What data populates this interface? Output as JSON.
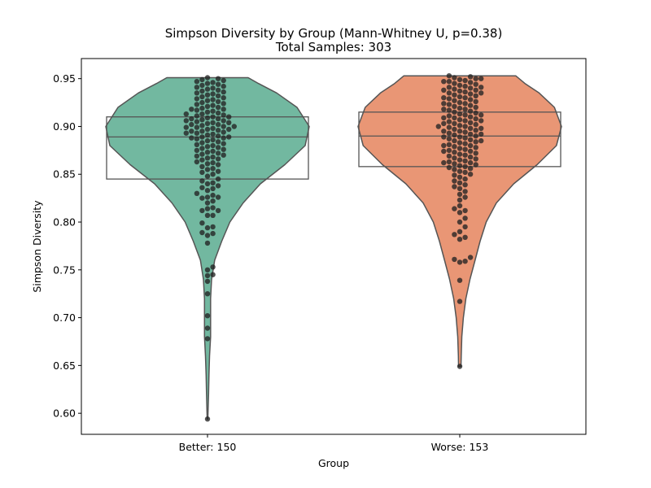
{
  "chart_data": {
    "type": "violin",
    "title": "Simpson Diversity by Group (Mann-Whitney U, p=0.38)",
    "subtitle": "Total Samples: 303",
    "xlabel": "Group",
    "ylabel": "Simpson Diversity",
    "ylim": [
      0.578,
      0.971
    ],
    "yticks": [
      "0.60",
      "0.65",
      "0.70",
      "0.75",
      "0.80",
      "0.85",
      "0.90",
      "0.95"
    ],
    "categories": [
      "Better: 150",
      "Worse: 153"
    ],
    "colors": {
      "Better: 150": "#72b8a0",
      "Worse: 153": "#e99675"
    },
    "grid": false,
    "series": [
      {
        "category": "Better: 150",
        "min": 0.594,
        "max": 0.951,
        "box": {
          "q1": 0.845,
          "median": 0.889,
          "q3": 0.91
        },
        "density": [
          [
            0.594,
            0.003
          ],
          [
            0.6,
            0.005
          ],
          [
            0.62,
            0.01
          ],
          [
            0.64,
            0.014
          ],
          [
            0.66,
            0.02
          ],
          [
            0.68,
            0.03
          ],
          [
            0.7,
            0.03
          ],
          [
            0.72,
            0.03
          ],
          [
            0.74,
            0.04
          ],
          [
            0.76,
            0.07
          ],
          [
            0.78,
            0.14
          ],
          [
            0.8,
            0.22
          ],
          [
            0.82,
            0.35
          ],
          [
            0.84,
            0.52
          ],
          [
            0.86,
            0.76
          ],
          [
            0.88,
            0.96
          ],
          [
            0.9,
            1.0
          ],
          [
            0.92,
            0.88
          ],
          [
            0.935,
            0.68
          ],
          [
            0.945,
            0.5
          ],
          [
            0.951,
            0.4
          ]
        ],
        "points": [
          0.594,
          0.678,
          0.689,
          0.702,
          0.725,
          0.738,
          0.744,
          0.745,
          0.75,
          0.753,
          0.778,
          0.786,
          0.788,
          0.789,
          0.794,
          0.795,
          0.799,
          0.807,
          0.807,
          0.812,
          0.812,
          0.814,
          0.815,
          0.82,
          0.822,
          0.825,
          0.826,
          0.826,
          0.828,
          0.83,
          0.833,
          0.835,
          0.836,
          0.838,
          0.84,
          0.841,
          0.843,
          0.845,
          0.848,
          0.85,
          0.852,
          0.853,
          0.855,
          0.856,
          0.858,
          0.86,
          0.861,
          0.862,
          0.863,
          0.865,
          0.866,
          0.867,
          0.868,
          0.869,
          0.87,
          0.871,
          0.872,
          0.873,
          0.874,
          0.875,
          0.876,
          0.877,
          0.878,
          0.879,
          0.88,
          0.881,
          0.882,
          0.883,
          0.884,
          0.885,
          0.886,
          0.887,
          0.888,
          0.888,
          0.889,
          0.889,
          0.89,
          0.891,
          0.892,
          0.893,
          0.893,
          0.894,
          0.895,
          0.895,
          0.896,
          0.897,
          0.897,
          0.898,
          0.899,
          0.899,
          0.9,
          0.9,
          0.901,
          0.902,
          0.902,
          0.903,
          0.904,
          0.904,
          0.905,
          0.906,
          0.906,
          0.907,
          0.908,
          0.908,
          0.909,
          0.91,
          0.91,
          0.911,
          0.912,
          0.913,
          0.913,
          0.914,
          0.915,
          0.916,
          0.917,
          0.918,
          0.918,
          0.919,
          0.92,
          0.921,
          0.922,
          0.923,
          0.924,
          0.925,
          0.926,
          0.927,
          0.928,
          0.929,
          0.93,
          0.931,
          0.932,
          0.933,
          0.934,
          0.935,
          0.936,
          0.937,
          0.938,
          0.939,
          0.94,
          0.941,
          0.942,
          0.943,
          0.944,
          0.945,
          0.946,
          0.947,
          0.948,
          0.949,
          0.95,
          0.951
        ]
      },
      {
        "category": "Worse: 153",
        "min": 0.649,
        "max": 0.953,
        "box": {
          "q1": 0.858,
          "median": 0.89,
          "q3": 0.915
        },
        "density": [
          [
            0.649,
            0.012
          ],
          [
            0.66,
            0.014
          ],
          [
            0.68,
            0.02
          ],
          [
            0.7,
            0.035
          ],
          [
            0.72,
            0.06
          ],
          [
            0.74,
            0.1
          ],
          [
            0.76,
            0.15
          ],
          [
            0.78,
            0.2
          ],
          [
            0.8,
            0.26
          ],
          [
            0.82,
            0.36
          ],
          [
            0.84,
            0.53
          ],
          [
            0.86,
            0.76
          ],
          [
            0.88,
            0.95
          ],
          [
            0.9,
            1.0
          ],
          [
            0.92,
            0.93
          ],
          [
            0.935,
            0.78
          ],
          [
            0.945,
            0.64
          ],
          [
            0.953,
            0.55
          ]
        ],
        "points": [
          0.649,
          0.717,
          0.739,
          0.758,
          0.759,
          0.761,
          0.763,
          0.782,
          0.784,
          0.787,
          0.79,
          0.795,
          0.8,
          0.804,
          0.81,
          0.812,
          0.814,
          0.817,
          0.823,
          0.826,
          0.829,
          0.832,
          0.835,
          0.837,
          0.839,
          0.841,
          0.843,
          0.845,
          0.847,
          0.849,
          0.85,
          0.852,
          0.853,
          0.855,
          0.856,
          0.857,
          0.858,
          0.859,
          0.86,
          0.861,
          0.862,
          0.862,
          0.863,
          0.864,
          0.865,
          0.866,
          0.867,
          0.868,
          0.869,
          0.87,
          0.871,
          0.872,
          0.873,
          0.874,
          0.874,
          0.875,
          0.876,
          0.877,
          0.878,
          0.879,
          0.88,
          0.88,
          0.881,
          0.882,
          0.883,
          0.884,
          0.885,
          0.885,
          0.886,
          0.887,
          0.888,
          0.889,
          0.889,
          0.89,
          0.891,
          0.892,
          0.892,
          0.893,
          0.894,
          0.895,
          0.895,
          0.896,
          0.897,
          0.898,
          0.898,
          0.899,
          0.9,
          0.9,
          0.901,
          0.902,
          0.903,
          0.903,
          0.904,
          0.905,
          0.906,
          0.906,
          0.907,
          0.908,
          0.909,
          0.909,
          0.91,
          0.911,
          0.912,
          0.912,
          0.913,
          0.914,
          0.915,
          0.916,
          0.917,
          0.918,
          0.918,
          0.919,
          0.92,
          0.921,
          0.922,
          0.923,
          0.924,
          0.924,
          0.925,
          0.926,
          0.927,
          0.928,
          0.929,
          0.93,
          0.93,
          0.931,
          0.932,
          0.933,
          0.934,
          0.935,
          0.935,
          0.936,
          0.937,
          0.938,
          0.938,
          0.939,
          0.94,
          0.941,
          0.941,
          0.942,
          0.943,
          0.944,
          0.945,
          0.946,
          0.947,
          0.947,
          0.948,
          0.949,
          0.95,
          0.95,
          0.951,
          0.952,
          0.953
        ]
      }
    ]
  }
}
